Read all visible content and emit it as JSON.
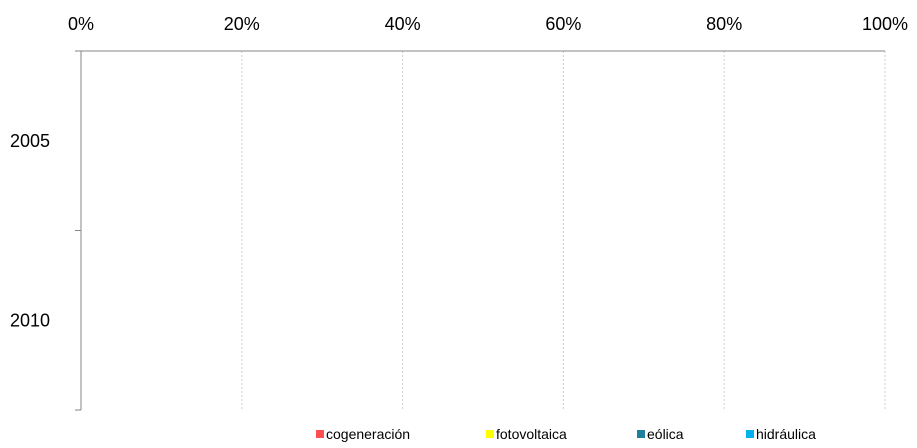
{
  "chart_data": {
    "type": "bar",
    "orientation": "horizontal",
    "stacked": "percent",
    "categories": [
      "2005",
      "2010"
    ],
    "series": [
      {
        "name": "cogeneración",
        "color": "#ff5050",
        "values": [
          0,
          0
        ]
      },
      {
        "name": "fotovoltaica",
        "color": "#ffff00",
        "values": [
          0,
          0
        ]
      },
      {
        "name": "eólica",
        "color": "#1f7f9f",
        "values": [
          0,
          0
        ]
      },
      {
        "name": "hidráulica",
        "color": "#00b0f0",
        "values": [
          0,
          0
        ]
      }
    ],
    "x_ticks": [
      "0%",
      "20%",
      "40%",
      "60%",
      "80%",
      "100%"
    ],
    "xlim": [
      0,
      100
    ],
    "x_axis_position": "top",
    "grid": true,
    "legend_position": "bottom"
  }
}
